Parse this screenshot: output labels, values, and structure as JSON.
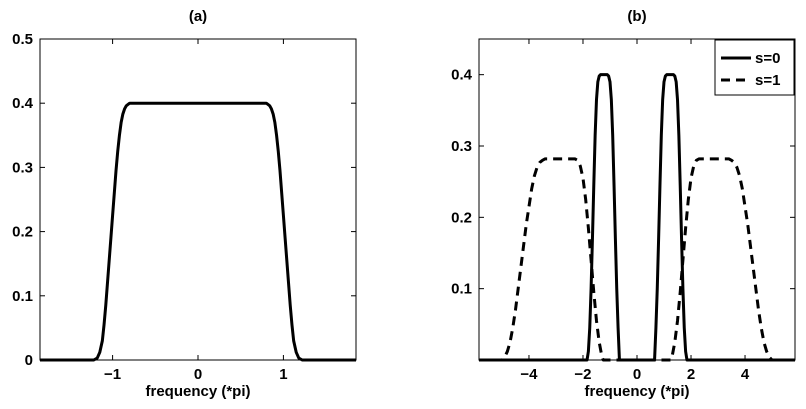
{
  "chart_data": [
    {
      "type": "line",
      "title": "(a)",
      "xlabel": "frequency (*pi)",
      "ylabel": "",
      "xlim": [
        -1.85,
        1.85
      ],
      "ylim": [
        0,
        0.5
      ],
      "xticks": [
        -1,
        0,
        1
      ],
      "xtick_labels": [
        "−1",
        "0",
        "1"
      ],
      "yticks": [
        0,
        0.1,
        0.2,
        0.3,
        0.4,
        0.5
      ],
      "ytick_labels": [
        "0",
        "0.1",
        "0.2",
        "0.3",
        "0.4",
        "0.5"
      ],
      "grid": false,
      "series": [
        {
          "style": "solid",
          "color": "#000000",
          "x": [
            -1.85,
            -1.22,
            -1.18,
            -1.15,
            -1.12,
            -1.1,
            -1.08,
            -1.06,
            -1.04,
            -1.02,
            -1.0,
            -0.98,
            -0.96,
            -0.94,
            -0.92,
            -0.9,
            -0.88,
            -0.86,
            -0.84,
            -0.82,
            -0.8,
            -0.75,
            0.0,
            0.75,
            0.8,
            0.82,
            0.84,
            0.86,
            0.88,
            0.9,
            0.92,
            0.94,
            0.96,
            0.98,
            1.0,
            1.02,
            1.04,
            1.06,
            1.08,
            1.1,
            1.12,
            1.15,
            1.18,
            1.22,
            1.85
          ],
          "y": [
            0,
            0,
            0.003,
            0.012,
            0.03,
            0.055,
            0.085,
            0.12,
            0.155,
            0.19,
            0.225,
            0.26,
            0.295,
            0.325,
            0.35,
            0.37,
            0.383,
            0.391,
            0.396,
            0.398,
            0.4,
            0.4,
            0.4,
            0.4,
            0.4,
            0.398,
            0.396,
            0.391,
            0.383,
            0.37,
            0.35,
            0.325,
            0.295,
            0.26,
            0.225,
            0.19,
            0.155,
            0.12,
            0.085,
            0.055,
            0.03,
            0.012,
            0.003,
            0,
            0
          ]
        }
      ]
    },
    {
      "type": "line",
      "title": "(b)",
      "xlabel": "frequency (*pi)",
      "ylabel": "",
      "xlim": [
        -5.85,
        5.85
      ],
      "ylim": [
        0,
        0.45
      ],
      "xticks": [
        -4,
        -2,
        0,
        2,
        4
      ],
      "xtick_labels": [
        "−4",
        "−2",
        "0",
        "2",
        "4"
      ],
      "yticks": [
        0.1,
        0.2,
        0.3,
        0.4
      ],
      "ytick_labels": [
        "0.1",
        "0.2",
        "0.3",
        "0.4"
      ],
      "grid": false,
      "legend_position": "top-right",
      "series": [
        {
          "name": "s=0",
          "style": "solid",
          "color": "#000000",
          "x": [
            -5.85,
            -1.85,
            -1.8,
            -1.75,
            -1.7,
            -1.65,
            -1.6,
            -1.55,
            -1.5,
            -1.45,
            -1.4,
            -1.35,
            -1.1,
            -1.05,
            -1.0,
            -0.95,
            -0.9,
            -0.85,
            -0.8,
            -0.75,
            -0.7,
            -0.65,
            0.65,
            0.7,
            0.75,
            0.8,
            0.85,
            0.9,
            0.95,
            1.0,
            1.05,
            1.1,
            1.35,
            1.4,
            1.45,
            1.5,
            1.55,
            1.6,
            1.65,
            1.7,
            1.75,
            1.8,
            1.85,
            5.85
          ],
          "y": [
            0,
            0,
            0.012,
            0.045,
            0.1,
            0.17,
            0.245,
            0.315,
            0.365,
            0.39,
            0.398,
            0.4,
            0.4,
            0.398,
            0.39,
            0.365,
            0.315,
            0.245,
            0.17,
            0.1,
            0.045,
            0,
            0,
            0.045,
            0.1,
            0.17,
            0.245,
            0.315,
            0.365,
            0.39,
            0.398,
            0.4,
            0.4,
            0.398,
            0.39,
            0.365,
            0.315,
            0.245,
            0.17,
            0.1,
            0.045,
            0.012,
            0,
            0
          ]
        },
        {
          "name": "s=1",
          "style": "dashed",
          "color": "#000000",
          "x": [
            -5.85,
            -5.0,
            -4.9,
            -4.8,
            -4.7,
            -4.6,
            -4.5,
            -4.4,
            -4.3,
            -4.2,
            -4.1,
            -4.0,
            -3.9,
            -3.8,
            -3.7,
            -3.6,
            -3.5,
            -3.4,
            -3.3,
            -3.2,
            -2.4,
            -2.3,
            -2.2,
            -2.1,
            -2.0,
            -1.9,
            -1.8,
            -1.7,
            -1.6,
            -1.5,
            -1.4,
            -1.3,
            -1.25,
            1.25,
            1.3,
            1.4,
            1.5,
            1.6,
            1.7,
            1.8,
            1.9,
            2.0,
            2.1,
            2.2,
            2.3,
            2.4,
            3.2,
            3.3,
            3.4,
            3.5,
            3.6,
            3.7,
            3.8,
            3.9,
            4.0,
            4.1,
            4.2,
            4.3,
            4.4,
            4.5,
            4.6,
            4.7,
            4.8,
            4.9,
            5.0,
            5.85
          ],
          "y": [
            0,
            0,
            0.004,
            0.012,
            0.025,
            0.045,
            0.07,
            0.1,
            0.13,
            0.16,
            0.19,
            0.215,
            0.24,
            0.258,
            0.27,
            0.277,
            0.28,
            0.282,
            0.282,
            0.282,
            0.282,
            0.282,
            0.28,
            0.272,
            0.255,
            0.225,
            0.185,
            0.14,
            0.095,
            0.055,
            0.025,
            0.005,
            0,
            0,
            0.005,
            0.025,
            0.055,
            0.095,
            0.14,
            0.185,
            0.225,
            0.255,
            0.272,
            0.28,
            0.282,
            0.282,
            0.282,
            0.282,
            0.282,
            0.28,
            0.277,
            0.27,
            0.258,
            0.24,
            0.215,
            0.19,
            0.16,
            0.13,
            0.1,
            0.07,
            0.045,
            0.025,
            0.012,
            0.004,
            0,
            0
          ]
        }
      ]
    }
  ]
}
